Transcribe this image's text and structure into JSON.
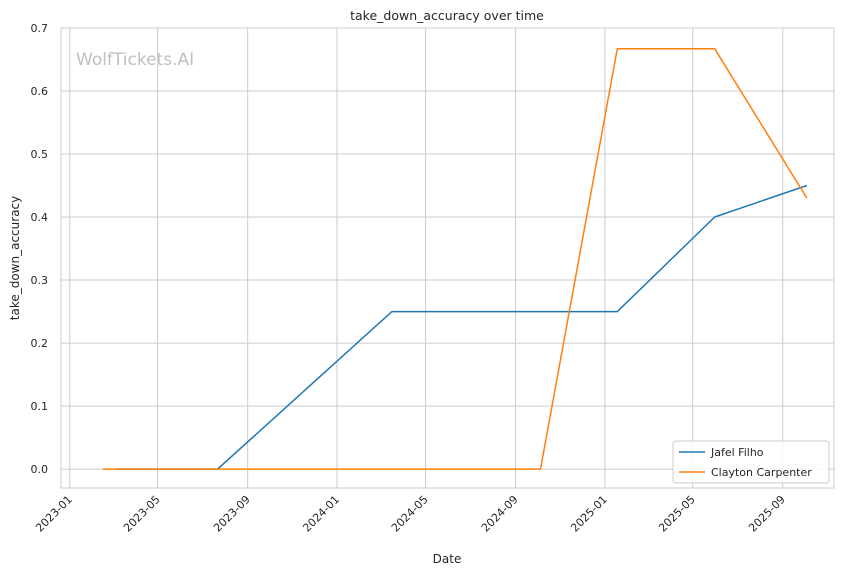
{
  "chart_data": {
    "type": "line",
    "title": "take_down_accuracy over time",
    "xlabel": "Date",
    "ylabel": "take_down_accuracy",
    "watermark": "WolfTickets.AI",
    "x_axis_type": "date",
    "xlim": [
      "2022-12-20",
      "2025-11-10"
    ],
    "ylim": [
      -0.03,
      0.7
    ],
    "x_ticks": [
      "2023-01",
      "2023-05",
      "2023-09",
      "2024-01",
      "2024-05",
      "2024-09",
      "2025-01",
      "2025-05",
      "2025-09"
    ],
    "x_tick_dates": [
      "2023-01-01",
      "2023-05-01",
      "2023-09-01",
      "2024-01-01",
      "2024-05-01",
      "2024-09-01",
      "2025-01-01",
      "2025-05-01",
      "2025-09-01"
    ],
    "y_ticks": [
      0.0,
      0.1,
      0.2,
      0.3,
      0.4,
      0.5,
      0.6,
      0.7
    ],
    "y_tick_labels": [
      "0.0",
      "0.1",
      "0.2",
      "0.3",
      "0.4",
      "0.5",
      "0.6",
      "0.7"
    ],
    "grid": true,
    "legend_position": "bottom-right",
    "series": [
      {
        "name": "Jafel Filho",
        "color": "#1f77b4",
        "points": [
          {
            "x": "2023-03-04",
            "y": 0.0
          },
          {
            "x": "2023-07-22",
            "y": 0.0
          },
          {
            "x": "2024-03-16",
            "y": 0.25
          },
          {
            "x": "2025-01-18",
            "y": 0.25
          },
          {
            "x": "2025-05-31",
            "y": 0.4
          },
          {
            "x": "2025-10-04",
            "y": 0.45
          }
        ]
      },
      {
        "name": "Clayton Carpenter",
        "color": "#ff7f0e",
        "points": [
          {
            "x": "2023-02-15",
            "y": 0.0
          },
          {
            "x": "2024-10-05",
            "y": 0.0
          },
          {
            "x": "2025-01-18",
            "y": 0.667
          },
          {
            "x": "2025-05-31",
            "y": 0.667
          },
          {
            "x": "2025-10-04",
            "y": 0.43
          }
        ]
      }
    ]
  }
}
